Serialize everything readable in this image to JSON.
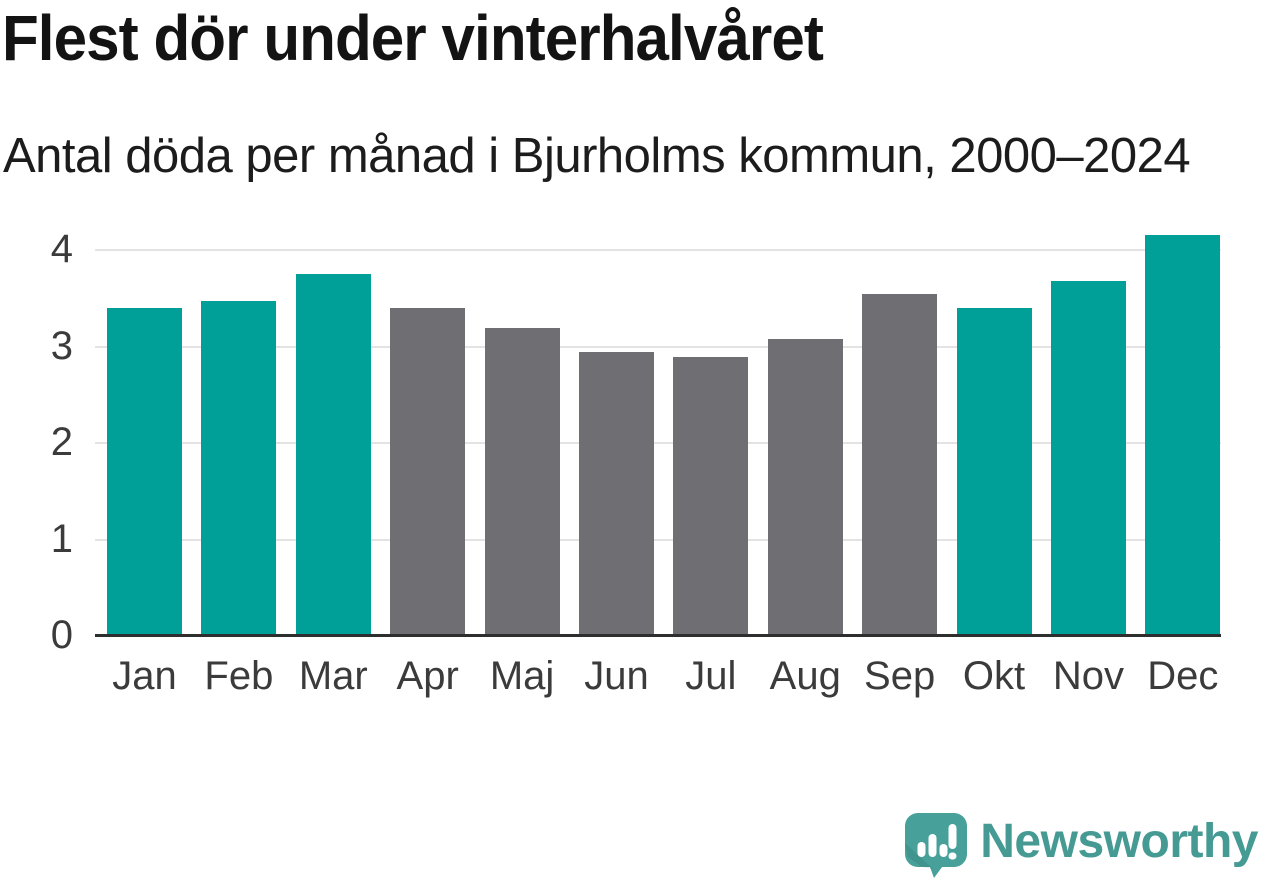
{
  "title": "Flest dör under vinterhalvåret",
  "subtitle": "Antal döda per månad i Bjurholms kommun, 2000–2024",
  "footer": {
    "brand": "Newsworthy"
  },
  "colors": {
    "winter_bar": "#00A098",
    "summer_bar": "#6E6E73",
    "gridline": "#E3E3E3",
    "axis_line": "#2E2E2E",
    "tick_text": "#3B3B3B",
    "title_text": "#131313",
    "brand_teal": "#459A93"
  },
  "chart_data": {
    "type": "bar",
    "title": "Flest dör under vinterhalvåret",
    "subtitle": "Antal döda per månad i Bjurholms kommun, 2000–2024",
    "categories": [
      "Jan",
      "Feb",
      "Mar",
      "Apr",
      "Maj",
      "Jun",
      "Jul",
      "Aug",
      "Sep",
      "Okt",
      "Nov",
      "Dec"
    ],
    "values": [
      3.4,
      3.47,
      3.75,
      3.4,
      3.19,
      2.95,
      2.89,
      3.08,
      3.55,
      3.4,
      3.68,
      4.16
    ],
    "season": [
      "winter",
      "winter",
      "winter",
      "summer",
      "summer",
      "summer",
      "summer",
      "summer",
      "summer",
      "winter",
      "winter",
      "winter"
    ],
    "palette": {
      "winter": "#00A098",
      "summer": "#6E6E73"
    },
    "yticks": [
      0,
      1,
      2,
      3,
      4
    ],
    "ylim": [
      0,
      4.21
    ],
    "grid": true,
    "legend": "none",
    "xlabel": "",
    "ylabel": ""
  }
}
